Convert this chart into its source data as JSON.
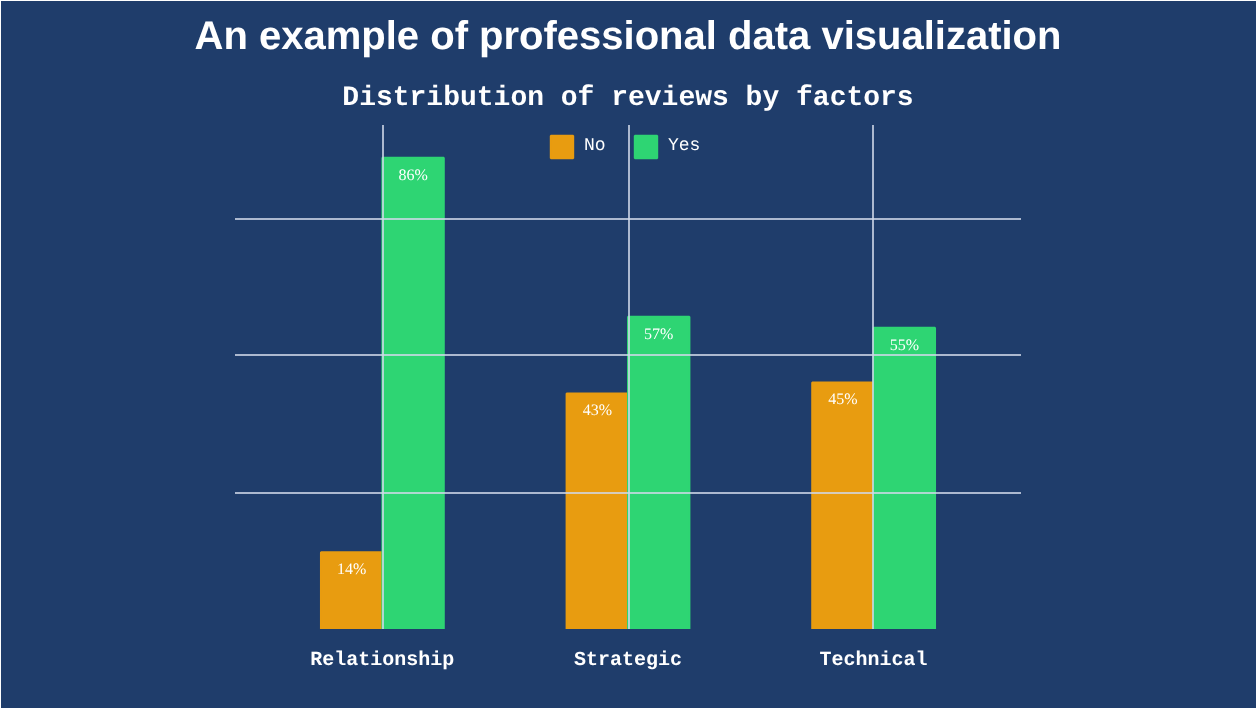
{
  "chart_data": {
    "type": "bar",
    "title": "An example of professional data visualization",
    "subtitle": "Distribution of reviews by factors",
    "categories": [
      "Relationship",
      "Strategic",
      "Technical"
    ],
    "series": [
      {
        "name": "No",
        "color": "#e89c10",
        "values": [
          14,
          43,
          45
        ],
        "value_labels": [
          "14%",
          "43%",
          "45%"
        ]
      },
      {
        "name": "Yes",
        "color": "#2ed573",
        "values": [
          86,
          57,
          55
        ],
        "value_labels": [
          "86%",
          "57%",
          "55%"
        ]
      }
    ],
    "ylim": [
      0,
      92
    ],
    "yticks": [
      {
        "value": 0,
        "label": null
      },
      {
        "value": 25,
        "label": null
      },
      {
        "value": 50,
        "label": null
      },
      {
        "value": 75,
        "label": null
      }
    ],
    "tick_labels": "x",
    "grid": true,
    "legend": "top"
  }
}
